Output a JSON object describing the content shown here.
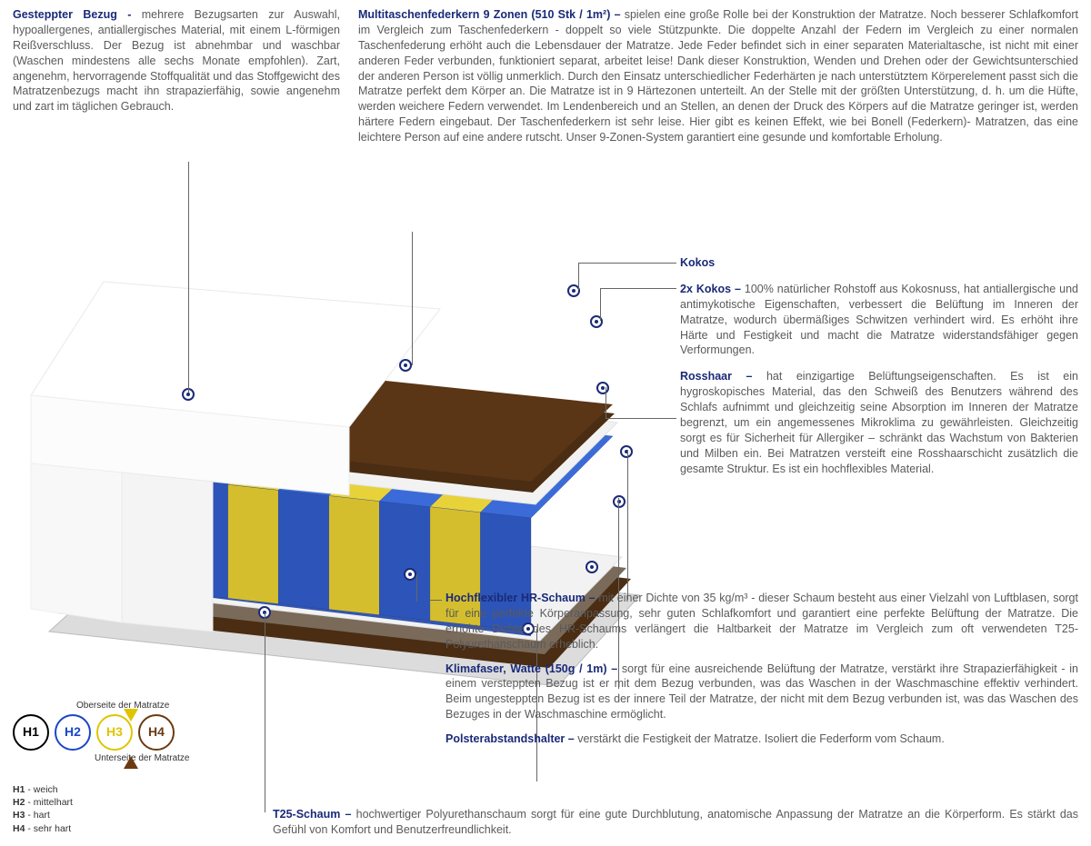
{
  "colors": {
    "headline": "#1a2a78",
    "body": "#5a5a5a",
    "leader": "#666666",
    "h1_ring": "#000000",
    "h2_ring": "#1a46c8",
    "h3_ring": "#e0c400",
    "h4_ring": "#6b3a12",
    "spring_blue": "#3b6bd8",
    "spring_yellow": "#e8d23a",
    "coco_brown": "#4a2d12",
    "rosshaar": "#7a6a5a",
    "foam_white": "#f2f2f2",
    "cover_white": "#ffffff",
    "base_gray": "#dcdcdc"
  },
  "top": {
    "left_title": "Gesteppter Bezug - ",
    "left_body": "mehrere Bezugsarten zur Auswahl, hypoallergenes, antiallergisches Material, mit einem L-förmigen Reißverschluss. Der Bezug ist abnehmbar und waschbar (Waschen mindestens alle sechs Monate empfohlen). Zart, angenehm, hervorragende Stoffqualität und das Stoffgewicht des Matratzenbezugs macht ihn strapazierfähig, sowie angenehm und zart im täglichen Gebrauch.",
    "right_title": "Multitaschenfederkern 9 Zonen (510 Stk / 1m²) – ",
    "right_body": "spielen eine große Rolle bei der Konstruktion der Matratze. Noch besserer Schlafkomfort im Vergleich zum Taschenfederkern - doppelt so viele Stützpunkte. Die doppelte Anzahl der Federn im Vergleich zu einer normalen Taschenfederung erhöht auch die Lebensdauer der Matratze. Jede Feder befindet sich in einer separaten Materialtasche, ist nicht mit einer anderen Feder verbunden, funktioniert separat, arbeitet leise! Dank dieser Konstruktion, Wenden und Drehen oder der Gewichtsunterschied der anderen Person ist völlig unmerklich. Durch den Einsatz unterschiedlicher Federhärten je nach unterstütztem Körperelement passt sich die Matratze perfekt dem Körper an. Die Matratze ist in 9 Härtezonen unterteilt. An der Stelle mit der größten Unterstützung, d. h. um die Hüfte, werden weichere Federn verwendet. Im Lendenbereich und an Stellen, an denen der Druck des Körpers auf die Matratze geringer ist, werden härtere Federn eingebaut. Der Taschenfederkern ist sehr leise. Hier gibt es keinen Effekt, wie bei Bonell (Federkern)- Matratzen, das eine leichtere Person auf eine andere rutscht. Unser 9-Zonen-System garantiert eine gesunde und komfortable Erholung."
  },
  "right_items": [
    {
      "title": "Kokos",
      "body": ""
    },
    {
      "title": "2x Kokos – ",
      "body": "100% natürlicher Rohstoff aus Kokosnuss, hat antiallergische und antimykotische Eigenschaften, verbessert die Belüftung im Inneren der Matratze, wodurch übermäßiges Schwitzen verhindert wird. Es erhöht ihre Härte und Festigkeit und macht die Matratze widerstandsfähiger gegen Verformungen."
    },
    {
      "title": "Rosshaar – ",
      "body": "hat einzigartige Belüftungseigenschaften. Es ist ein hygroskopisches Material, das den Schweiß des Benutzers während des Schlafs aufnimmt und gleichzeitig seine Absorption im Inneren der Matratze begrenzt, um ein angemessenes Mikroklima zu gewährleisten. Gleichzeitig sorgt es für Sicherheit für Allergiker – schränkt das Wachstum von Bakterien und Milben ein. Bei Matratzen versteift eine Rosshaarschicht zusätzlich die gesamte Struktur. Es ist ein hochflexibles Material."
    }
  ],
  "wide_items": [
    {
      "title": "Hochflexibler HR-Schaum – ",
      "body": "mit einer Dichte von 35 kg/m³ - dieser Schaum besteht aus einer Vielzahl von Luftblasen, sorgt für eine perfekte Körperanpassung, sehr guten Schlafkomfort und garantiert eine perfekte Belüftung der Matratze. Die erhöhte Dichte des HR-Schaums verlängert die Haltbarkeit der Matratze im Vergleich zum oft verwendeten T25-Polyurethanschaum erheblich."
    },
    {
      "title": "Klimafaser, Watte (150g / 1m) – ",
      "body": "sorgt für eine ausreichende Belüftung der Matratze, verstärkt ihre Strapazierfähigkeit - in einem versteppten Bezug ist er mit dem Bezug verbunden, was das Waschen in der Waschmaschine effektiv verhindert. Beim ungesteppten Bezug ist es der innere Teil der Matratze, der nicht mit dem Bezug verbunden ist, was das Waschen des Bezuges in der Waschmaschine ermöglicht."
    },
    {
      "title": "Polsterabstandshalter – ",
      "body": "verstärkt die Festigkeit der Matratze. Isoliert die Federform vom Schaum."
    }
  ],
  "bottom": {
    "title": "T25-Schaum – ",
    "body": "hochwertiger Polyurethanschaum sorgt für eine gute Durchblutung, anatomische Anpassung der Matratze an die Körperform. Es stärkt das Gefühl von Komfort und Benutzerfreundlichkeit."
  },
  "hardness": {
    "top_label": "Oberseite der Matratze",
    "bottom_label": "Unterseite der Matratze",
    "circles": [
      {
        "code": "H1",
        "ring": "#000000",
        "text": "#000000"
      },
      {
        "code": "H2",
        "ring": "#1a46c8",
        "text": "#1a46c8"
      },
      {
        "code": "H3",
        "ring": "#e0c400",
        "text": "#e0c400"
      },
      {
        "code": "H4",
        "ring": "#6b3a12",
        "text": "#6b3a12"
      }
    ],
    "legend": [
      {
        "code": "H1",
        "label": " - weich"
      },
      {
        "code": "H2",
        "label": " - mittelhart"
      },
      {
        "code": "H3",
        "label": " - hart"
      },
      {
        "code": "H4",
        "label": " - sehr hart"
      }
    ]
  },
  "mattress_svg": {
    "zones": [
      "blue",
      "yellow",
      "blue",
      "yellow",
      "blue",
      "yellow",
      "blue",
      "yellow",
      "blue"
    ]
  }
}
